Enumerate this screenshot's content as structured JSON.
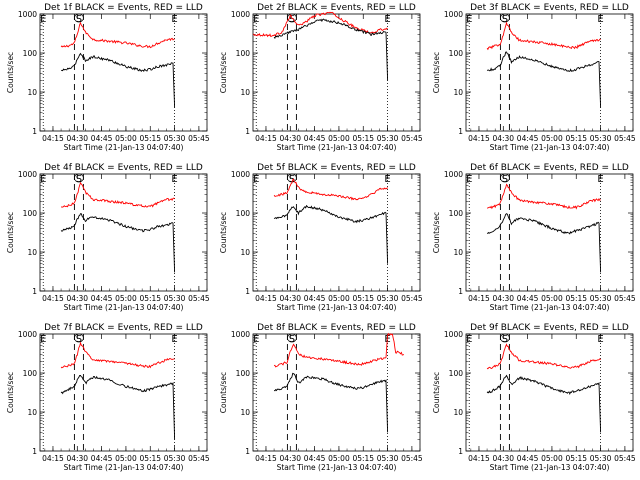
{
  "chart_data": [
    {
      "type": "line",
      "title": "Det 1f BLACK = Events, RED = LLD",
      "xlabel": "Start Time (21-Jan-13 04:07:40)",
      "ylabel": "Counts/sec",
      "yscale": "log",
      "ylim": [
        1,
        1000
      ],
      "xlim": [
        "04:07",
        "05:50"
      ],
      "xticks": [
        "04:15",
        "04:30",
        "04:45",
        "05:00",
        "05:15",
        "05:30",
        "05:45"
      ],
      "yticks": [
        "1",
        "10",
        "100",
        "1000"
      ],
      "markers": [
        {
          "label": "E",
          "x": "04:09"
        },
        {
          "label": "S",
          "x": "04:31"
        },
        {
          "label": "E",
          "x": "05:30"
        }
      ],
      "series": [
        {
          "color": "#ff0000",
          "x": [
            "04:20",
            "04:25",
            "04:28",
            "04:30",
            "04:32",
            "04:35",
            "04:40",
            "04:50",
            "05:00",
            "05:10",
            "05:15",
            "05:20",
            "05:25",
            "05:30"
          ],
          "values": [
            140,
            155,
            175,
            300,
            600,
            340,
            220,
            200,
            180,
            150,
            145,
            180,
            220,
            230
          ]
        },
        {
          "color": "#000000",
          "x": [
            "04:20",
            "04:25",
            "04:28",
            "04:30",
            "04:32",
            "04:35",
            "04:40",
            "04:50",
            "05:00",
            "05:10",
            "05:15",
            "05:20",
            "05:25",
            "05:29",
            "05:30"
          ],
          "values": [
            35,
            40,
            45,
            70,
            100,
            65,
            80,
            65,
            45,
            35,
            38,
            45,
            50,
            55,
            4
          ]
        }
      ]
    },
    {
      "type": "line",
      "title": "Det 2f BLACK = Events, RED = LLD",
      "xlabel": "Start Time (21-Jan-13 04:07:40)",
      "ylabel": "Counts/sec",
      "yscale": "log",
      "ylim": [
        1,
        1000
      ],
      "xlim": [
        "04:07",
        "05:50"
      ],
      "xticks": [
        "04:15",
        "04:30",
        "04:45",
        "05:00",
        "05:15",
        "05:30",
        "05:45"
      ],
      "yticks": [
        "1",
        "10",
        "100",
        "1000"
      ],
      "markers": [
        {
          "label": "E",
          "x": "04:09"
        },
        {
          "label": "S",
          "x": "04:31"
        },
        {
          "label": "E",
          "x": "05:30"
        }
      ],
      "series": [
        {
          "color": "#ff0000",
          "x": [
            "04:07",
            "04:20",
            "04:25",
            "04:30",
            "04:35",
            "04:40",
            "04:45",
            "04:50",
            "04:55",
            "05:00",
            "05:10",
            "05:20",
            "05:25",
            "05:30"
          ],
          "values": [
            300,
            280,
            350,
            900,
            500,
            650,
            900,
            1000,
            1100,
            800,
            450,
            320,
            400,
            420
          ]
        },
        {
          "color": "#000000",
          "x": [
            "04:20",
            "04:25",
            "04:30",
            "04:35",
            "04:40",
            "04:45",
            "04:50",
            "05:00",
            "05:10",
            "05:20",
            "05:25",
            "05:29",
            "05:30"
          ],
          "values": [
            250,
            280,
            350,
            400,
            500,
            650,
            700,
            600,
            400,
            300,
            330,
            340,
            20
          ]
        }
      ]
    },
    {
      "type": "line",
      "title": "Det 3f BLACK = Events, RED = LLD",
      "xlabel": "Start Time (21-Jan-13 04:07:40)",
      "ylabel": "Counts/sec",
      "yscale": "log",
      "ylim": [
        1,
        1000
      ],
      "xlim": [
        "04:07",
        "05:50"
      ],
      "xticks": [
        "04:15",
        "04:30",
        "04:45",
        "05:00",
        "05:15",
        "05:30",
        "05:45"
      ],
      "yticks": [
        "1",
        "10",
        "100",
        "1000"
      ],
      "markers": [
        {
          "label": "E",
          "x": "04:09"
        },
        {
          "label": "S",
          "x": "04:31"
        },
        {
          "label": "E",
          "x": "05:30"
        }
      ],
      "series": [
        {
          "color": "#ff0000",
          "x": [
            "04:20",
            "04:25",
            "04:28",
            "04:30",
            "04:32",
            "04:35",
            "04:40",
            "04:50",
            "05:00",
            "05:10",
            "05:15",
            "05:20",
            "05:25",
            "05:30"
          ],
          "values": [
            130,
            150,
            170,
            300,
            600,
            330,
            210,
            190,
            170,
            140,
            140,
            175,
            210,
            220
          ]
        },
        {
          "color": "#000000",
          "x": [
            "04:20",
            "04:25",
            "04:28",
            "04:30",
            "04:32",
            "04:35",
            "04:40",
            "04:50",
            "05:00",
            "05:10",
            "05:15",
            "05:20",
            "05:25",
            "05:29",
            "05:30"
          ],
          "values": [
            35,
            40,
            48,
            75,
            110,
            60,
            80,
            65,
            45,
            35,
            38,
            45,
            50,
            60,
            4
          ]
        }
      ]
    },
    {
      "type": "line",
      "title": "Det 4f BLACK = Events, RED = LLD",
      "xlabel": "Start Time (21-Jan-13 04:07:40)",
      "ylabel": "Counts/sec",
      "yscale": "log",
      "ylim": [
        1,
        1000
      ],
      "xlim": [
        "04:07",
        "05:50"
      ],
      "xticks": [
        "04:15",
        "04:30",
        "04:45",
        "05:00",
        "05:15",
        "05:30",
        "05:45"
      ],
      "yticks": [
        "1",
        "10",
        "100",
        "1000"
      ],
      "markers": [
        {
          "label": "E",
          "x": "04:09"
        },
        {
          "label": "S",
          "x": "04:31"
        },
        {
          "label": "E",
          "x": "05:30"
        }
      ],
      "series": [
        {
          "color": "#ff0000",
          "x": [
            "04:20",
            "04:25",
            "04:28",
            "04:30",
            "04:32",
            "04:35",
            "04:40",
            "04:50",
            "05:00",
            "05:10",
            "05:15",
            "05:20",
            "05:25",
            "05:30"
          ],
          "values": [
            140,
            155,
            175,
            300,
            600,
            340,
            220,
            200,
            180,
            150,
            145,
            180,
            220,
            230
          ]
        },
        {
          "color": "#000000",
          "x": [
            "04:20",
            "04:25",
            "04:28",
            "04:30",
            "04:32",
            "04:35",
            "04:40",
            "04:50",
            "05:00",
            "05:10",
            "05:15",
            "05:20",
            "05:25",
            "05:29",
            "05:30"
          ],
          "values": [
            35,
            40,
            45,
            70,
            100,
            65,
            80,
            65,
            45,
            35,
            38,
            45,
            50,
            55,
            3
          ]
        }
      ]
    },
    {
      "type": "line",
      "title": "Det 5f BLACK = Events, RED = LLD",
      "xlabel": "Start Time (21-Jan-13 04:07:40)",
      "ylabel": "Counts/sec",
      "yscale": "log",
      "ylim": [
        1,
        1000
      ],
      "xlim": [
        "04:07",
        "05:50"
      ],
      "xticks": [
        "04:15",
        "04:30",
        "04:45",
        "05:00",
        "05:15",
        "05:30",
        "05:45"
      ],
      "yticks": [
        "1",
        "10",
        "100",
        "1000"
      ],
      "markers": [
        {
          "label": "E",
          "x": "04:09"
        },
        {
          "label": "S",
          "x": "04:31"
        },
        {
          "label": "E",
          "x": "05:30"
        }
      ],
      "series": [
        {
          "color": "#ff0000",
          "x": [
            "04:20",
            "04:25",
            "04:28",
            "04:30",
            "04:32",
            "04:35",
            "04:40",
            "04:50",
            "05:00",
            "05:10",
            "05:15",
            "05:20",
            "05:25",
            "05:30"
          ],
          "values": [
            280,
            300,
            330,
            500,
            750,
            450,
            350,
            300,
            270,
            230,
            230,
            300,
            400,
            450
          ]
        },
        {
          "color": "#000000",
          "x": [
            "04:20",
            "04:25",
            "04:28",
            "04:30",
            "04:32",
            "04:35",
            "04:40",
            "04:50",
            "05:00",
            "05:10",
            "05:15",
            "05:20",
            "05:25",
            "05:29",
            "05:30"
          ],
          "values": [
            70,
            80,
            90,
            120,
            150,
            100,
            150,
            120,
            80,
            60,
            65,
            75,
            90,
            100,
            5
          ]
        }
      ]
    },
    {
      "type": "line",
      "title": "Det 6f BLACK = Events, RED = LLD",
      "xlabel": "Start Time (21-Jan-13 04:07:40)",
      "ylabel": "Counts/sec",
      "yscale": "log",
      "ylim": [
        1,
        1000
      ],
      "xlim": [
        "04:07",
        "05:50"
      ],
      "xticks": [
        "04:15",
        "04:30",
        "04:45",
        "05:00",
        "05:15",
        "05:30",
        "05:45"
      ],
      "yticks": [
        "1",
        "10",
        "100",
        "1000"
      ],
      "markers": [
        {
          "label": "E",
          "x": "04:09"
        },
        {
          "label": "S",
          "x": "04:31"
        },
        {
          "label": "E",
          "x": "05:30"
        }
      ],
      "series": [
        {
          "color": "#ff0000",
          "x": [
            "04:20",
            "04:25",
            "04:28",
            "04:30",
            "04:32",
            "04:35",
            "04:40",
            "04:50",
            "05:00",
            "05:10",
            "05:15",
            "05:20",
            "05:25",
            "05:30"
          ],
          "values": [
            130,
            150,
            170,
            300,
            550,
            330,
            210,
            190,
            170,
            140,
            140,
            170,
            210,
            220
          ]
        },
        {
          "color": "#000000",
          "x": [
            "04:20",
            "04:25",
            "04:28",
            "04:30",
            "04:32",
            "04:35",
            "04:40",
            "04:50",
            "05:00",
            "05:10",
            "05:15",
            "05:20",
            "05:25",
            "05:29",
            "05:30"
          ],
          "values": [
            30,
            38,
            45,
            70,
            100,
            55,
            75,
            60,
            40,
            30,
            35,
            40,
            48,
            55,
            3
          ]
        }
      ]
    },
    {
      "type": "line",
      "title": "Det 7f BLACK = Events, RED = LLD",
      "xlabel": "Start Time (21-Jan-13 04:07:40)",
      "ylabel": "Counts/sec",
      "yscale": "log",
      "ylim": [
        1,
        1000
      ],
      "xlim": [
        "04:07",
        "05:50"
      ],
      "xticks": [
        "04:15",
        "04:30",
        "04:45",
        "05:00",
        "05:15",
        "05:30",
        "05:45"
      ],
      "yticks": [
        "1",
        "10",
        "100",
        "1000"
      ],
      "markers": [
        {
          "label": "E",
          "x": "04:09"
        },
        {
          "label": "S",
          "x": "04:31"
        },
        {
          "label": "E",
          "x": "05:30"
        }
      ],
      "series": [
        {
          "color": "#ff0000",
          "x": [
            "04:20",
            "04:25",
            "04:28",
            "04:30",
            "04:32",
            "04:35",
            "04:40",
            "04:50",
            "05:00",
            "05:10",
            "05:15",
            "05:20",
            "05:25",
            "05:30"
          ],
          "values": [
            140,
            155,
            175,
            300,
            600,
            340,
            220,
            200,
            180,
            150,
            145,
            180,
            220,
            230
          ]
        },
        {
          "color": "#000000",
          "x": [
            "04:20",
            "04:25",
            "04:28",
            "04:30",
            "04:32",
            "04:35",
            "04:40",
            "04:50",
            "05:00",
            "05:10",
            "05:15",
            "05:20",
            "05:25",
            "05:29",
            "05:30"
          ],
          "values": [
            30,
            38,
            45,
            65,
            90,
            55,
            80,
            65,
            45,
            35,
            38,
            45,
            50,
            55,
            2
          ]
        }
      ]
    },
    {
      "type": "line",
      "title": "Det 8f BLACK = Events, RED = LLD",
      "xlabel": "Start Time (21-Jan-13 04:07:40)",
      "ylabel": "Counts/sec",
      "yscale": "log",
      "ylim": [
        1,
        1000
      ],
      "xlim": [
        "04:07",
        "05:50"
      ],
      "xticks": [
        "04:15",
        "04:30",
        "04:45",
        "05:00",
        "05:15",
        "05:30",
        "05:45"
      ],
      "yticks": [
        "1",
        "10",
        "100",
        "1000"
      ],
      "markers": [
        {
          "label": "E",
          "x": "04:09"
        },
        {
          "label": "S",
          "x": "04:31"
        },
        {
          "label": "E",
          "x": "05:30"
        }
      ],
      "series": [
        {
          "color": "#ff0000",
          "x": [
            "04:20",
            "04:25",
            "04:28",
            "04:30",
            "04:32",
            "04:35",
            "04:40",
            "04:50",
            "05:00",
            "05:10",
            "05:15",
            "05:20",
            "05:25",
            "05:29",
            "05:30",
            "05:33",
            "05:35",
            "05:40"
          ],
          "values": [
            150,
            170,
            190,
            350,
            550,
            300,
            250,
            230,
            200,
            170,
            170,
            200,
            230,
            250,
            1000,
            1000,
            350,
            300
          ]
        },
        {
          "color": "#000000",
          "x": [
            "04:20",
            "04:25",
            "04:28",
            "04:30",
            "04:32",
            "04:35",
            "04:40",
            "04:50",
            "05:00",
            "05:10",
            "05:15",
            "05:20",
            "05:25",
            "05:29",
            "05:30"
          ],
          "values": [
            35,
            40,
            48,
            70,
            100,
            55,
            80,
            70,
            50,
            40,
            42,
            50,
            60,
            65,
            3
          ]
        }
      ]
    },
    {
      "type": "line",
      "title": "Det 9f BLACK = Events, RED = LLD",
      "xlabel": "Start Time (21-Jan-13 04:07:40)",
      "ylabel": "Counts/sec",
      "yscale": "log",
      "ylim": [
        1,
        1000
      ],
      "xlim": [
        "04:07",
        "05:50"
      ],
      "xticks": [
        "04:15",
        "04:30",
        "04:45",
        "05:00",
        "05:15",
        "05:30",
        "05:45"
      ],
      "yticks": [
        "1",
        "10",
        "100",
        "1000"
      ],
      "markers": [
        {
          "label": "E",
          "x": "04:09"
        },
        {
          "label": "S",
          "x": "04:31"
        },
        {
          "label": "E",
          "x": "05:30"
        }
      ],
      "series": [
        {
          "color": "#ff0000",
          "x": [
            "04:20",
            "04:25",
            "04:28",
            "04:30",
            "04:32",
            "04:35",
            "04:40",
            "04:50",
            "05:00",
            "05:10",
            "05:15",
            "05:20",
            "05:25",
            "05:30"
          ],
          "values": [
            130,
            150,
            170,
            300,
            550,
            330,
            210,
            190,
            170,
            140,
            140,
            170,
            210,
            220
          ]
        },
        {
          "color": "#000000",
          "x": [
            "04:20",
            "04:25",
            "04:28",
            "04:30",
            "04:32",
            "04:35",
            "04:40",
            "04:50",
            "05:00",
            "05:10",
            "05:15",
            "05:20",
            "05:25",
            "05:29",
            "05:30"
          ],
          "values": [
            30,
            38,
            45,
            65,
            90,
            50,
            75,
            60,
            40,
            30,
            35,
            40,
            48,
            55,
            3
          ]
        }
      ]
    }
  ]
}
